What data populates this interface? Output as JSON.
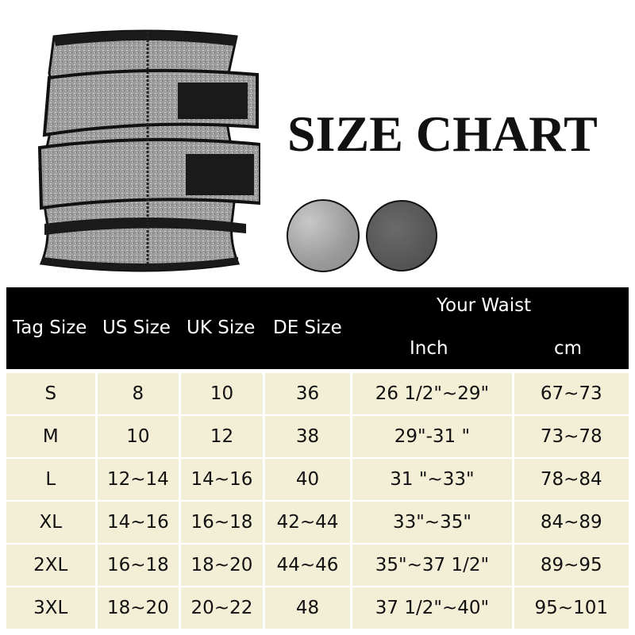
{
  "title": "SIZE CHART",
  "swatches": [
    {
      "color": "#a0a0a0",
      "name": "light gray"
    },
    {
      "color": "#555555",
      "name": "dark gray"
    }
  ],
  "table": {
    "headers": {
      "tag": "Tag Size",
      "us": "US Size",
      "uk": "UK Size",
      "de": "DE Size",
      "waist": "Your Waist",
      "inch": "Inch",
      "cm": "cm"
    },
    "rows": [
      [
        "S",
        "8",
        "10",
        "36",
        "26 1/2\"~29\"",
        "67~73"
      ],
      [
        "M",
        "10",
        "12",
        "38",
        "29\"-31 \"",
        "73~78"
      ],
      [
        "L",
        "12~14",
        "14~16",
        "40",
        "31 \"~33\"",
        "78~84"
      ],
      [
        "XL",
        "14~16",
        "16~18",
        "42~44",
        "33\"~35\"",
        "84~89"
      ],
      [
        "2XL",
        "16~18",
        "18~20",
        "44~46",
        "35\"~37 1/2\"",
        "89~95"
      ],
      [
        "3XL",
        "18~20",
        "20~22",
        "48",
        "37 1/2\"~40\"",
        "95~101"
      ]
    ]
  }
}
